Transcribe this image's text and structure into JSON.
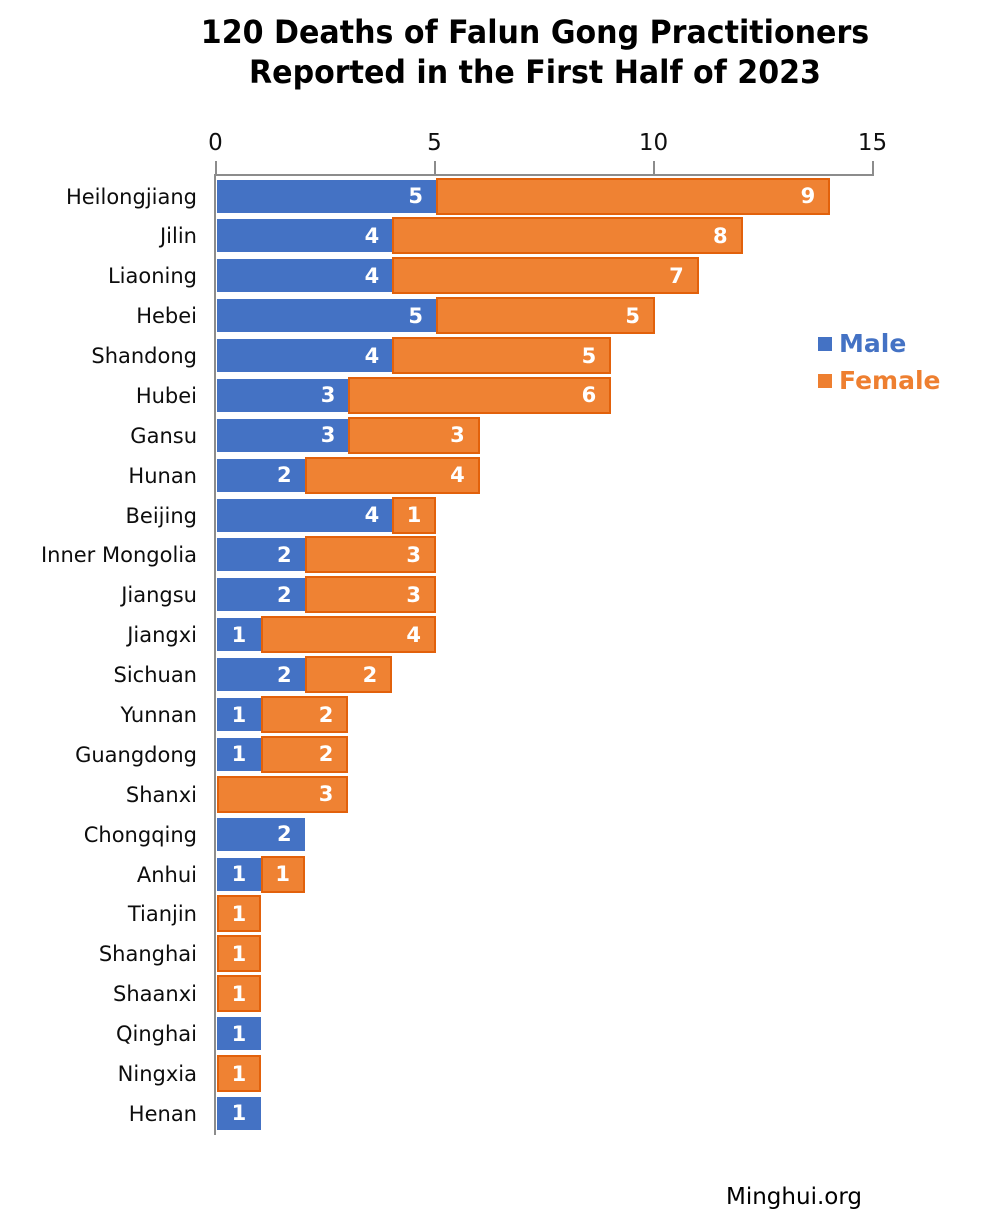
{
  "title": {
    "line1": "120 Deaths of Falun Gong Practitioners",
    "line2": "Reported in the First Half of 2023"
  },
  "x_axis": {
    "ticks": [
      "0",
      "5",
      "10",
      "15"
    ]
  },
  "legend": [
    {
      "label": "Male",
      "color": "#4472C4"
    },
    {
      "label": "Female",
      "color": "#EE7F30"
    }
  ],
  "source": "Minghui.org",
  "colors": {
    "male_fill": "#4472C4",
    "female_fill": "#EF8233",
    "female_border": "#E2610B",
    "axis": "#8C8C8C",
    "value_label_text": "#FFFFFF"
  },
  "chart_data": {
    "type": "bar",
    "orientation": "horizontal",
    "stacked": true,
    "title": "120 Deaths of Falun Gong Practitioners Reported in the First Half of 2023",
    "xlabel": "",
    "ylabel": "",
    "xlim": [
      0,
      15
    ],
    "x_ticks": [
      0,
      5,
      10,
      15
    ],
    "grid": false,
    "legend_position": "right",
    "source": "Minghui.org",
    "categories": [
      "Heilongjiang",
      "Jilin",
      "Liaoning",
      "Hebei",
      "Shandong",
      "Hubei",
      "Gansu",
      "Hunan",
      "Beijing",
      "Inner Mongolia",
      "Jiangsu",
      "Jiangxi",
      "Sichuan",
      "Yunnan",
      "Guangdong",
      "Shanxi",
      "Chongqing",
      "Anhui",
      "Tianjin",
      "Shanghai",
      "Shaanxi",
      "Qinghai",
      "Ningxia",
      "Henan"
    ],
    "series": [
      {
        "name": "Male",
        "color": "#4472C4",
        "values": [
          5,
          4,
          4,
          5,
          4,
          3,
          3,
          2,
          4,
          2,
          2,
          1,
          2,
          1,
          1,
          0,
          2,
          1,
          0,
          0,
          0,
          1,
          0,
          1
        ]
      },
      {
        "name": "Female",
        "color": "#EF8233",
        "values": [
          9,
          8,
          7,
          5,
          5,
          6,
          3,
          4,
          1,
          3,
          3,
          4,
          2,
          2,
          2,
          3,
          0,
          1,
          1,
          1,
          1,
          0,
          1,
          0
        ]
      }
    ],
    "totals_note": "sum of all values = 120"
  }
}
